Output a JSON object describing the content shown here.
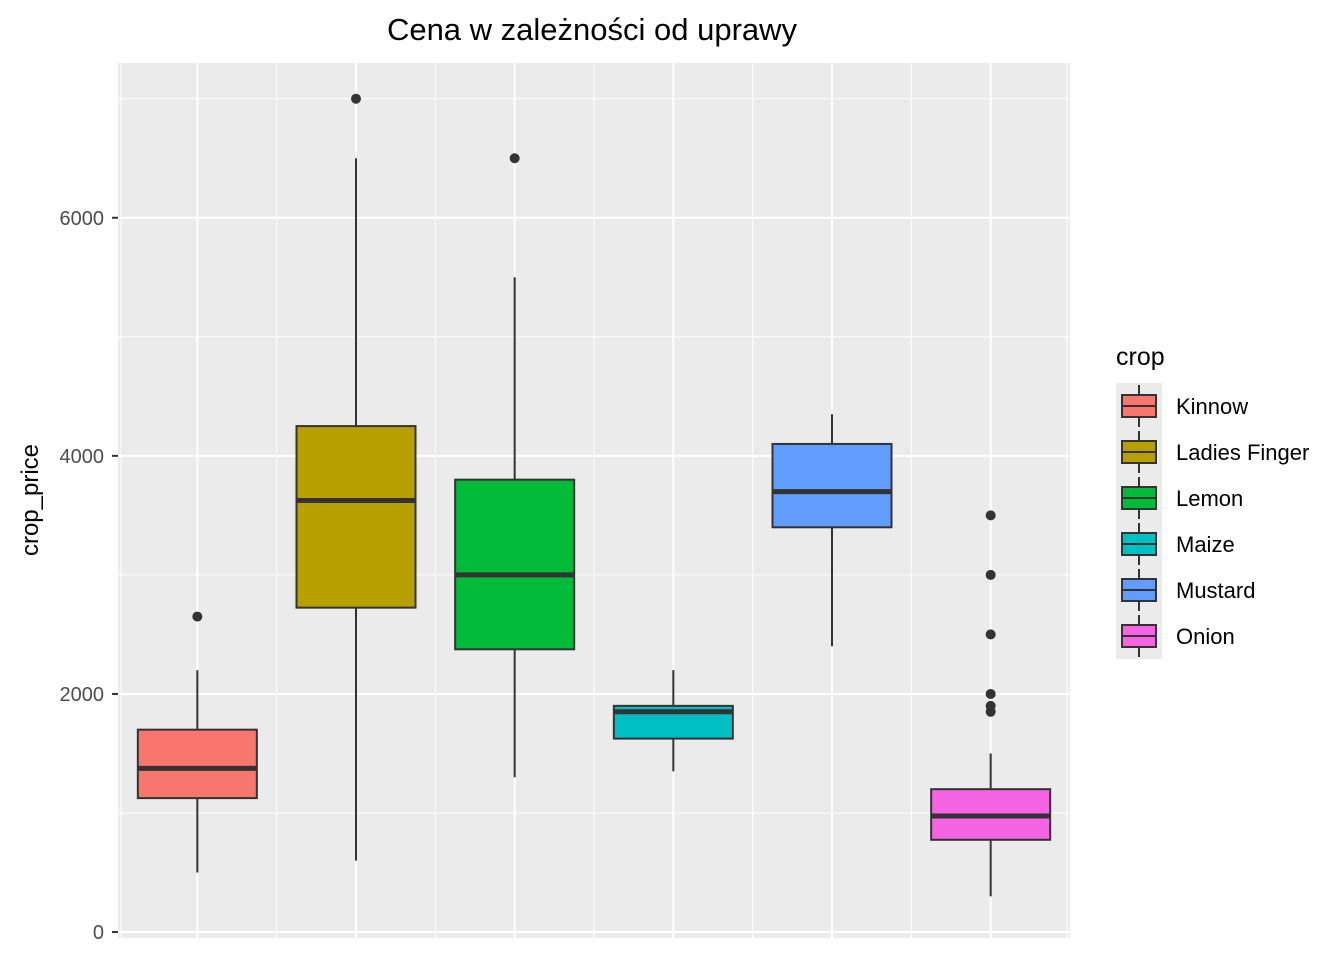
{
  "chart_data": {
    "type": "box",
    "title": "Cena w zależności od uprawy",
    "xlabel": "",
    "ylabel": "crop_price",
    "ylim": [
      -50,
      7300
    ],
    "yticks": [
      0,
      2000,
      4000,
      6000
    ],
    "grid": true,
    "legend": {
      "title": "crop",
      "placement": "right"
    },
    "series": [
      {
        "name": "Kinnow",
        "color": "#F8766D",
        "min": 500,
        "q1": 1125,
        "median": 1375,
        "q3": 1700,
        "max": 2200,
        "outliers": [
          2650
        ]
      },
      {
        "name": "Ladies Finger",
        "color": "#B79F00",
        "min": 600,
        "q1": 2725,
        "median": 3625,
        "q3": 4250,
        "max": 6500,
        "outliers": [
          7000
        ]
      },
      {
        "name": "Lemon",
        "color": "#00BA38",
        "min": 1300,
        "q1": 2375,
        "median": 3000,
        "q3": 3800,
        "max": 5500,
        "outliers": [
          6500
        ]
      },
      {
        "name": "Maize",
        "color": "#00BFC4",
        "min": 1350,
        "q1": 1625,
        "median": 1850,
        "q3": 1900,
        "max": 2200,
        "outliers": []
      },
      {
        "name": "Mustard",
        "color": "#619CFF",
        "min": 2400,
        "q1": 3400,
        "median": 3700,
        "q3": 4100,
        "max": 4350,
        "outliers": []
      },
      {
        "name": "Onion",
        "color": "#F564E3",
        "min": 300,
        "q1": 775,
        "median": 975,
        "q3": 1200,
        "max": 1500,
        "outliers": [
          1850,
          1900,
          2000,
          2500,
          3000,
          3500
        ]
      }
    ]
  }
}
